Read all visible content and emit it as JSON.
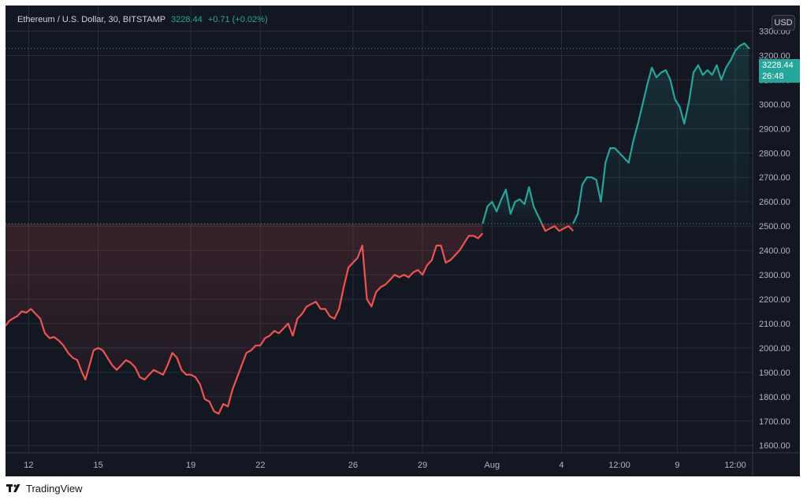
{
  "header": {
    "symbol_label": "Ethereum / U.S. Dollar, 30, BITSTAMP",
    "last_price": "3228.44",
    "change": "+0.71 (+0.02%)"
  },
  "currency_button": "USD",
  "price_tag": {
    "price": "3228.44",
    "countdown": "26:48"
  },
  "footer": {
    "brand": "TradingView"
  },
  "colors": {
    "up": "#26a69a",
    "down": "#ef5350",
    "background": "#131722",
    "grid": "#2a2e39",
    "text": "#b2b5be"
  },
  "chart_data": {
    "type": "line",
    "title": "Ethereum / U.S. Dollar, 30, BITSTAMP",
    "xlabel": "",
    "ylabel": "USD",
    "ylim": [
      1570,
      3405
    ],
    "grid": true,
    "baseline": 2510,
    "last_value": 3228.44,
    "y_ticks": [
      1600,
      1700,
      1800,
      1900,
      2000,
      2100,
      2200,
      2300,
      2400,
      2500,
      2600,
      2700,
      2800,
      2900,
      3000,
      3100,
      3200,
      3300
    ],
    "y_tick_labels": [
      "1600.00",
      "1700.00",
      "1800.00",
      "1900.00",
      "2000.00",
      "2100.00",
      "2200.00",
      "2300.00",
      "2400.00",
      "2500.00",
      "2600.00",
      "2700.00",
      "2800.00",
      "2900.00",
      "3000.00",
      "3100.00",
      "3200.00",
      "3300.00"
    ],
    "x_ticks": [
      {
        "label": "12",
        "t": 1
      },
      {
        "label": "15",
        "t": 4
      },
      {
        "label": "19",
        "t": 8
      },
      {
        "label": "22",
        "t": 11
      },
      {
        "label": "26",
        "t": 15
      },
      {
        "label": "29",
        "t": 18
      },
      {
        "label": "Aug",
        "t": 21
      },
      {
        "label": "4",
        "t": 24
      },
      {
        "label": "12:00",
        "t": 26.5
      },
      {
        "label": "9",
        "t": 29
      },
      {
        "label": "12:00",
        "t": 31.5
      }
    ],
    "series": [
      {
        "values": [
          [
            0.0,
            2090
          ],
          [
            0.15,
            2110
          ],
          [
            0.3,
            2120
          ],
          [
            0.5,
            2130
          ],
          [
            0.7,
            2150
          ],
          [
            0.9,
            2145
          ],
          [
            1.1,
            2160
          ],
          [
            1.3,
            2140
          ],
          [
            1.5,
            2120
          ],
          [
            1.7,
            2060
          ],
          [
            1.9,
            2040
          ],
          [
            2.1,
            2045
          ],
          [
            2.3,
            2030
          ],
          [
            2.5,
            2010
          ],
          [
            2.7,
            1980
          ],
          [
            2.9,
            1960
          ],
          [
            3.1,
            1950
          ],
          [
            3.3,
            1900
          ],
          [
            3.45,
            1870
          ],
          [
            3.6,
            1920
          ],
          [
            3.8,
            1990
          ],
          [
            4.0,
            2000
          ],
          [
            4.2,
            1990
          ],
          [
            4.4,
            1960
          ],
          [
            4.6,
            1930
          ],
          [
            4.8,
            1910
          ],
          [
            5.0,
            1930
          ],
          [
            5.2,
            1950
          ],
          [
            5.4,
            1940
          ],
          [
            5.6,
            1920
          ],
          [
            5.8,
            1880
          ],
          [
            6.0,
            1870
          ],
          [
            6.2,
            1890
          ],
          [
            6.4,
            1910
          ],
          [
            6.6,
            1900
          ],
          [
            6.8,
            1890
          ],
          [
            7.0,
            1930
          ],
          [
            7.2,
            1980
          ],
          [
            7.4,
            1960
          ],
          [
            7.6,
            1910
          ],
          [
            7.8,
            1890
          ],
          [
            8.0,
            1890
          ],
          [
            8.2,
            1880
          ],
          [
            8.4,
            1850
          ],
          [
            8.6,
            1790
          ],
          [
            8.8,
            1780
          ],
          [
            9.0,
            1740
          ],
          [
            9.2,
            1730
          ],
          [
            9.4,
            1770
          ],
          [
            9.6,
            1760
          ],
          [
            9.8,
            1830
          ],
          [
            10.0,
            1880
          ],
          [
            10.2,
            1930
          ],
          [
            10.4,
            1980
          ],
          [
            10.6,
            1990
          ],
          [
            10.8,
            2010
          ],
          [
            11.0,
            2010
          ],
          [
            11.2,
            2040
          ],
          [
            11.4,
            2050
          ],
          [
            11.6,
            2070
          ],
          [
            11.8,
            2060
          ],
          [
            12.0,
            2080
          ],
          [
            12.2,
            2100
          ],
          [
            12.4,
            2050
          ],
          [
            12.6,
            2120
          ],
          [
            12.8,
            2140
          ],
          [
            13.0,
            2170
          ],
          [
            13.2,
            2180
          ],
          [
            13.4,
            2190
          ],
          [
            13.6,
            2160
          ],
          [
            13.8,
            2160
          ],
          [
            14.0,
            2130
          ],
          [
            14.2,
            2120
          ],
          [
            14.4,
            2160
          ],
          [
            14.6,
            2250
          ],
          [
            14.8,
            2330
          ],
          [
            15.0,
            2350
          ],
          [
            15.2,
            2370
          ],
          [
            15.4,
            2420
          ],
          [
            15.6,
            2200
          ],
          [
            15.8,
            2170
          ],
          [
            16.0,
            2230
          ],
          [
            16.2,
            2250
          ],
          [
            16.4,
            2260
          ],
          [
            16.6,
            2280
          ],
          [
            16.8,
            2300
          ],
          [
            17.0,
            2290
          ],
          [
            17.2,
            2300
          ],
          [
            17.4,
            2290
          ],
          [
            17.6,
            2310
          ],
          [
            17.8,
            2320
          ],
          [
            18.0,
            2300
          ],
          [
            18.2,
            2340
          ],
          [
            18.4,
            2360
          ],
          [
            18.6,
            2420
          ],
          [
            18.8,
            2420
          ],
          [
            19.0,
            2350
          ],
          [
            19.2,
            2360
          ],
          [
            19.4,
            2380
          ],
          [
            19.6,
            2400
          ],
          [
            19.8,
            2430
          ],
          [
            20.0,
            2460
          ],
          [
            20.2,
            2460
          ],
          [
            20.4,
            2450
          ],
          [
            20.5,
            2460
          ],
          [
            20.6,
            2470
          ]
        ]
      },
      {
        "values": [
          [
            20.6,
            2510
          ],
          [
            20.8,
            2580
          ],
          [
            21.0,
            2600
          ],
          [
            21.2,
            2560
          ],
          [
            21.4,
            2610
          ],
          [
            21.6,
            2650
          ],
          [
            21.8,
            2550
          ],
          [
            22.0,
            2600
          ],
          [
            22.2,
            2610
          ],
          [
            22.4,
            2590
          ],
          [
            22.6,
            2660
          ],
          [
            22.8,
            2580
          ],
          [
            23.0,
            2540
          ],
          [
            23.15,
            2510
          ]
        ]
      },
      {
        "values": [
          [
            23.15,
            2510
          ],
          [
            23.3,
            2480
          ],
          [
            23.5,
            2490
          ],
          [
            23.7,
            2500
          ],
          [
            23.9,
            2480
          ],
          [
            24.1,
            2490
          ],
          [
            24.3,
            2500
          ],
          [
            24.5,
            2480
          ]
        ]
      },
      {
        "values": [
          [
            24.5,
            2510
          ],
          [
            24.7,
            2550
          ],
          [
            24.9,
            2670
          ],
          [
            25.1,
            2700
          ],
          [
            25.3,
            2700
          ],
          [
            25.5,
            2690
          ],
          [
            25.7,
            2600
          ],
          [
            25.9,
            2760
          ],
          [
            26.1,
            2820
          ],
          [
            26.3,
            2820
          ],
          [
            26.5,
            2800
          ],
          [
            26.7,
            2780
          ],
          [
            26.9,
            2760
          ],
          [
            27.1,
            2850
          ],
          [
            27.3,
            2920
          ],
          [
            27.5,
            3000
          ],
          [
            27.7,
            3080
          ],
          [
            27.9,
            3150
          ],
          [
            28.1,
            3110
          ],
          [
            28.3,
            3130
          ],
          [
            28.5,
            3140
          ],
          [
            28.7,
            3100
          ],
          [
            28.9,
            3020
          ],
          [
            29.1,
            2990
          ],
          [
            29.3,
            2920
          ],
          [
            29.5,
            3010
          ],
          [
            29.7,
            3130
          ],
          [
            29.9,
            3160
          ],
          [
            30.1,
            3120
          ],
          [
            30.3,
            3140
          ],
          [
            30.5,
            3120
          ],
          [
            30.7,
            3160
          ],
          [
            30.9,
            3100
          ],
          [
            31.1,
            3150
          ],
          [
            31.3,
            3180
          ],
          [
            31.5,
            3220
          ],
          [
            31.7,
            3240
          ],
          [
            31.9,
            3250
          ],
          [
            32.1,
            3228.44
          ]
        ]
      }
    ]
  }
}
